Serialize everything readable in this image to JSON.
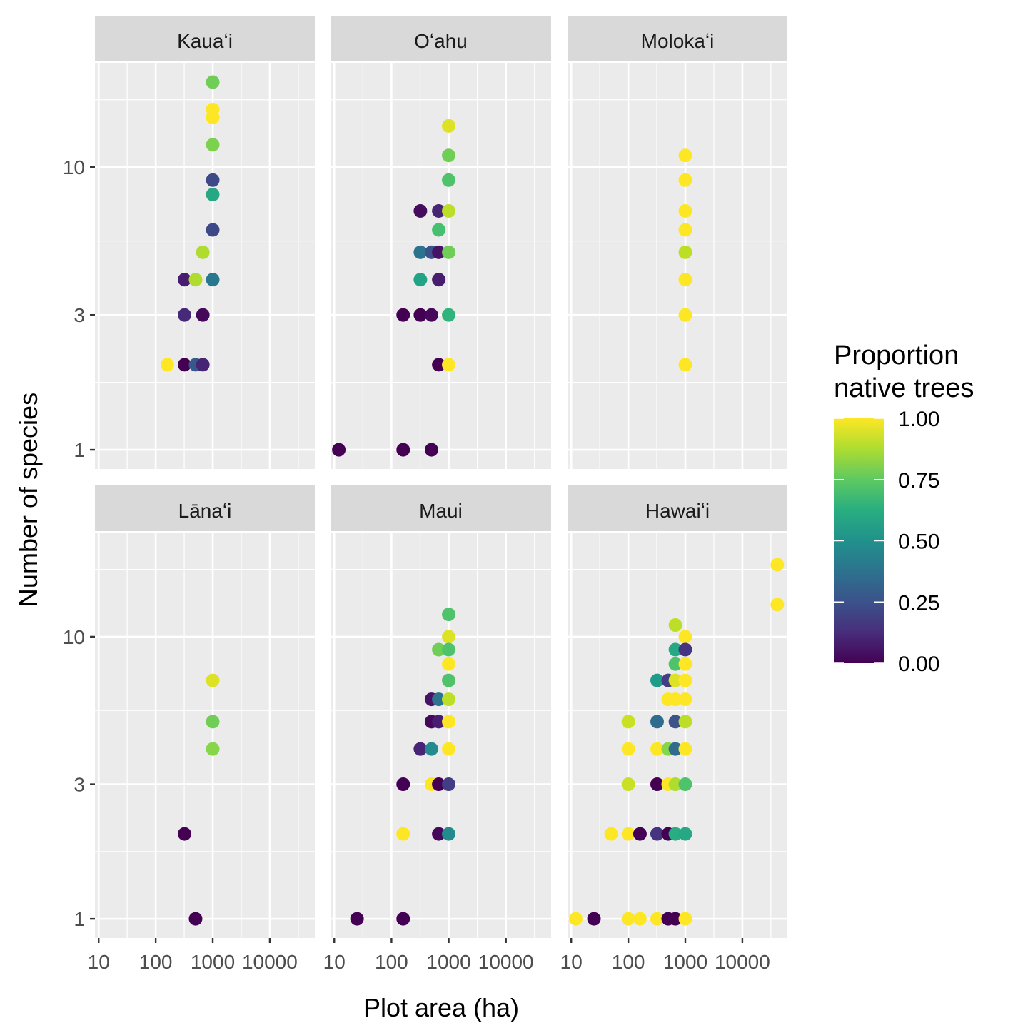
{
  "chart_data": {
    "type": "scatter",
    "xlabel": "Plot area (ha)",
    "ylabel": "Number of species",
    "x_scale": "log10",
    "y_scale": "log10",
    "x_ticks": [
      10,
      100,
      1000,
      10000
    ],
    "x_tick_labels": [
      "10",
      "100",
      "1000",
      "10000"
    ],
    "y_ticks": [
      1,
      3,
      10
    ],
    "y_tick_labels": [
      "1",
      "3",
      "10"
    ],
    "xlim": [
      8.6,
      61600
    ],
    "ylim": [
      0.855,
      23.4
    ],
    "grid": true,
    "legend": {
      "title": "Proportion\nnative trees",
      "title_lines": [
        "Proportion",
        "native trees"
      ],
      "type": "colorbar",
      "palette": "viridis",
      "range": [
        0,
        1
      ],
      "ticks": [
        0,
        0.25,
        0.5,
        0.75,
        1.0
      ],
      "tick_labels": [
        "0.00",
        "0.25",
        "0.50",
        "0.75",
        "1.00"
      ],
      "placement": "right"
    },
    "facets": [
      {
        "name": "Kauaʻi",
        "points": [
          {
            "x": 1000,
            "y": 20,
            "c": 0.78
          },
          {
            "x": 1000,
            "y": 16,
            "c": 1.0
          },
          {
            "x": 1000,
            "y": 15,
            "c": 1.0
          },
          {
            "x": 1000,
            "y": 12,
            "c": 0.8
          },
          {
            "x": 1000,
            "y": 9,
            "c": 0.22
          },
          {
            "x": 1000,
            "y": 8,
            "c": 0.6
          },
          {
            "x": 1000,
            "y": 6,
            "c": 0.22
          },
          {
            "x": 670,
            "y": 5,
            "c": 0.88
          },
          {
            "x": 320,
            "y": 4,
            "c": 0.08
          },
          {
            "x": 500,
            "y": 4,
            "c": 0.88
          },
          {
            "x": 1000,
            "y": 4,
            "c": 0.4
          },
          {
            "x": 320,
            "y": 3,
            "c": 0.12
          },
          {
            "x": 670,
            "y": 3,
            "c": 0.02
          },
          {
            "x": 160,
            "y": 2,
            "c": 1.0
          },
          {
            "x": 320,
            "y": 2,
            "c": 0.0
          },
          {
            "x": 500,
            "y": 2,
            "c": 0.28
          },
          {
            "x": 670,
            "y": 2,
            "c": 0.1
          }
        ]
      },
      {
        "name": "Oʻahu",
        "points": [
          {
            "x": 1000,
            "y": 14,
            "c": 0.95
          },
          {
            "x": 1000,
            "y": 11,
            "c": 0.78
          },
          {
            "x": 1000,
            "y": 9,
            "c": 0.72
          },
          {
            "x": 320,
            "y": 7,
            "c": 0.03
          },
          {
            "x": 670,
            "y": 7,
            "c": 0.1
          },
          {
            "x": 1000,
            "y": 7,
            "c": 0.9
          },
          {
            "x": 670,
            "y": 6,
            "c": 0.7
          },
          {
            "x": 320,
            "y": 5,
            "c": 0.38
          },
          {
            "x": 500,
            "y": 5,
            "c": 0.25
          },
          {
            "x": 670,
            "y": 5,
            "c": 0.05
          },
          {
            "x": 1000,
            "y": 5,
            "c": 0.78
          },
          {
            "x": 320,
            "y": 4,
            "c": 0.58
          },
          {
            "x": 670,
            "y": 4,
            "c": 0.08
          },
          {
            "x": 160,
            "y": 3,
            "c": 0.0
          },
          {
            "x": 320,
            "y": 3,
            "c": 0.0
          },
          {
            "x": 500,
            "y": 3,
            "c": 0.02
          },
          {
            "x": 1000,
            "y": 3,
            "c": 0.65
          },
          {
            "x": 670,
            "y": 2,
            "c": 0.0
          },
          {
            "x": 1000,
            "y": 2,
            "c": 1.0
          },
          {
            "x": 12,
            "y": 1,
            "c": 0.0
          },
          {
            "x": 160,
            "y": 1,
            "c": 0.0
          },
          {
            "x": 500,
            "y": 1,
            "c": 0.0
          }
        ]
      },
      {
        "name": "Molokaʻi",
        "points": [
          {
            "x": 1000,
            "y": 11,
            "c": 1.0
          },
          {
            "x": 1000,
            "y": 9,
            "c": 1.0
          },
          {
            "x": 1000,
            "y": 7,
            "c": 1.0
          },
          {
            "x": 1000,
            "y": 6,
            "c": 1.0
          },
          {
            "x": 1000,
            "y": 5,
            "c": 0.9
          },
          {
            "x": 1000,
            "y": 4,
            "c": 1.0
          },
          {
            "x": 1000,
            "y": 3,
            "c": 1.0
          },
          {
            "x": 1000,
            "y": 2,
            "c": 1.0
          }
        ]
      },
      {
        "name": "Lānaʻi",
        "points": [
          {
            "x": 1000,
            "y": 7,
            "c": 0.95
          },
          {
            "x": 1000,
            "y": 5,
            "c": 0.78
          },
          {
            "x": 1000,
            "y": 4,
            "c": 0.82
          },
          {
            "x": 320,
            "y": 2,
            "c": 0.0
          },
          {
            "x": 500,
            "y": 1,
            "c": 0.0
          }
        ]
      },
      {
        "name": "Maui",
        "points": [
          {
            "x": 1000,
            "y": 12,
            "c": 0.72
          },
          {
            "x": 1000,
            "y": 10,
            "c": 0.95
          },
          {
            "x": 670,
            "y": 9,
            "c": 0.78
          },
          {
            "x": 1000,
            "y": 9,
            "c": 0.72
          },
          {
            "x": 1000,
            "y": 8,
            "c": 1.0
          },
          {
            "x": 1000,
            "y": 7,
            "c": 0.72
          },
          {
            "x": 500,
            "y": 6,
            "c": 0.05
          },
          {
            "x": 670,
            "y": 6,
            "c": 0.38
          },
          {
            "x": 1000,
            "y": 6,
            "c": 0.9
          },
          {
            "x": 500,
            "y": 5,
            "c": 0.02
          },
          {
            "x": 670,
            "y": 5,
            "c": 0.08
          },
          {
            "x": 1000,
            "y": 5,
            "c": 1.0
          },
          {
            "x": 320,
            "y": 4,
            "c": 0.1
          },
          {
            "x": 500,
            "y": 4,
            "c": 0.48
          },
          {
            "x": 1000,
            "y": 4,
            "c": 1.0
          },
          {
            "x": 160,
            "y": 3,
            "c": 0.0
          },
          {
            "x": 500,
            "y": 3,
            "c": 1.0
          },
          {
            "x": 670,
            "y": 3,
            "c": 0.0
          },
          {
            "x": 1000,
            "y": 3,
            "c": 0.18
          },
          {
            "x": 160,
            "y": 2,
            "c": 1.0
          },
          {
            "x": 670,
            "y": 2,
            "c": 0.02
          },
          {
            "x": 1000,
            "y": 2,
            "c": 0.48
          },
          {
            "x": 25,
            "y": 1,
            "c": 0.0
          },
          {
            "x": 160,
            "y": 1,
            "c": 0.0
          }
        ]
      },
      {
        "name": "Hawaiʻi",
        "points": [
          {
            "x": 41000,
            "y": 18,
            "c": 1.0
          },
          {
            "x": 41000,
            "y": 13,
            "c": 1.0
          },
          {
            "x": 670,
            "y": 11,
            "c": 0.9
          },
          {
            "x": 1000,
            "y": 10,
            "c": 1.0
          },
          {
            "x": 670,
            "y": 9,
            "c": 0.6
          },
          {
            "x": 1000,
            "y": 9,
            "c": 0.15
          },
          {
            "x": 670,
            "y": 8,
            "c": 0.72
          },
          {
            "x": 1000,
            "y": 8,
            "c": 1.0
          },
          {
            "x": 320,
            "y": 7,
            "c": 0.55
          },
          {
            "x": 500,
            "y": 7,
            "c": 0.18
          },
          {
            "x": 670,
            "y": 7,
            "c": 0.95
          },
          {
            "x": 1000,
            "y": 7,
            "c": 1.0
          },
          {
            "x": 500,
            "y": 6,
            "c": 1.0
          },
          {
            "x": 670,
            "y": 6,
            "c": 1.0
          },
          {
            "x": 1000,
            "y": 6,
            "c": 1.0
          },
          {
            "x": 100,
            "y": 5,
            "c": 0.92
          },
          {
            "x": 320,
            "y": 5,
            "c": 0.35
          },
          {
            "x": 670,
            "y": 5,
            "c": 0.25
          },
          {
            "x": 1000,
            "y": 5,
            "c": 0.9
          },
          {
            "x": 100,
            "y": 4,
            "c": 1.0
          },
          {
            "x": 320,
            "y": 4,
            "c": 1.0
          },
          {
            "x": 500,
            "y": 4,
            "c": 0.82
          },
          {
            "x": 670,
            "y": 4,
            "c": 0.35
          },
          {
            "x": 1000,
            "y": 4,
            "c": 1.0
          },
          {
            "x": 100,
            "y": 3,
            "c": 0.92
          },
          {
            "x": 320,
            "y": 3,
            "c": 0.0
          },
          {
            "x": 500,
            "y": 3,
            "c": 1.0
          },
          {
            "x": 670,
            "y": 3,
            "c": 0.88
          },
          {
            "x": 1000,
            "y": 3,
            "c": 0.72
          },
          {
            "x": 50,
            "y": 2,
            "c": 1.0
          },
          {
            "x": 100,
            "y": 2,
            "c": 1.0
          },
          {
            "x": 160,
            "y": 2,
            "c": 0.0
          },
          {
            "x": 320,
            "y": 2,
            "c": 0.15
          },
          {
            "x": 500,
            "y": 2,
            "c": 0.0
          },
          {
            "x": 670,
            "y": 2,
            "c": 0.62
          },
          {
            "x": 1000,
            "y": 2,
            "c": 0.6
          },
          {
            "x": 12,
            "y": 1,
            "c": 1.0
          },
          {
            "x": 25,
            "y": 1,
            "c": 0.0
          },
          {
            "x": 100,
            "y": 1,
            "c": 1.0
          },
          {
            "x": 160,
            "y": 1,
            "c": 1.0
          },
          {
            "x": 320,
            "y": 1,
            "c": 1.0
          },
          {
            "x": 500,
            "y": 1,
            "c": 0.0
          },
          {
            "x": 670,
            "y": 1,
            "c": 0.0
          },
          {
            "x": 1000,
            "y": 1,
            "c": 1.0
          }
        ]
      }
    ]
  }
}
